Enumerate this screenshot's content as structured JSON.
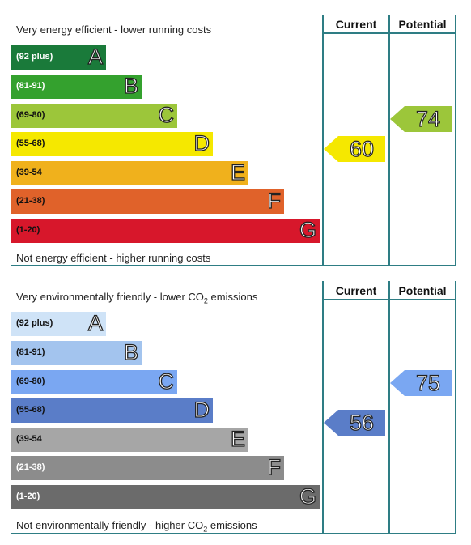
{
  "energy": {
    "top_label": "Very energy efficient - lower running costs",
    "bottom_label": "Not energy efficient - higher running costs",
    "current_header": "Current",
    "potential_header": "Potential",
    "bands": [
      {
        "range": "(92 plus)",
        "letter": "A",
        "color": "#1a7a3a"
      },
      {
        "range": "(81-91)",
        "letter": "B",
        "color": "#34a12e"
      },
      {
        "range": "(69-80)",
        "letter": "C",
        "color": "#9cc63a"
      },
      {
        "range": "(55-68)",
        "letter": "D",
        "color": "#f5e800"
      },
      {
        "range": "(39-54",
        "letter": "E",
        "color": "#f0b11c"
      },
      {
        "range": "(21-38)",
        "letter": "F",
        "color": "#e0622a"
      },
      {
        "range": "(1-20)",
        "letter": "G",
        "color": "#d7172b"
      }
    ],
    "current": {
      "value": "60",
      "color": "#f5e800",
      "band": "D"
    },
    "potential": {
      "value": "74",
      "color": "#9cc63a",
      "band": "C"
    }
  },
  "environment": {
    "top_label_pre": "Very environmentally friendly - lower CO",
    "top_label_sub": "2",
    "top_label_post": " emissions",
    "bottom_label_pre": "Not environmentally friendly - higher CO",
    "bottom_label_sub": "2",
    "bottom_label_post": " emissions",
    "current_header": "Current",
    "potential_header": "Potential",
    "bands": [
      {
        "range": "(92 plus)",
        "letter": "A",
        "color": "#cfe3f7"
      },
      {
        "range": "(81-91)",
        "letter": "B",
        "color": "#a3c4ee"
      },
      {
        "range": "(69-80)",
        "letter": "C",
        "color": "#7aa7f2"
      },
      {
        "range": "(55-68)",
        "letter": "D",
        "color": "#5a7dc8"
      },
      {
        "range": "(39-54",
        "letter": "E",
        "color": "#a6a6a6"
      },
      {
        "range": "(21-38)",
        "letter": "F",
        "color": "#8c8c8c"
      },
      {
        "range": "(1-20)",
        "letter": "G",
        "color": "#6b6b6b"
      }
    ],
    "current": {
      "value": "56",
      "color": "#5a7dc8",
      "band": "D"
    },
    "potential": {
      "value": "75",
      "color": "#7aa7f2",
      "band": "C"
    }
  }
}
